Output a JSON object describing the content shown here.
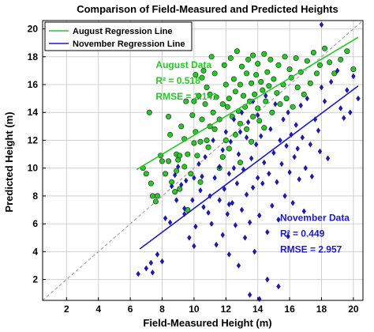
{
  "chart_data": {
    "type": "scatter",
    "title": "Comparison of Field-Measured and Predicted Heights",
    "xlabel": "Field-Measured Height (m)",
    "ylabel": "Predicted Height (m)",
    "xlim": [
      0.5,
      20.6
    ],
    "ylim": [
      0.5,
      20.6
    ],
    "xticks": [
      2,
      4,
      6,
      8,
      10,
      12,
      14,
      16,
      18,
      20
    ],
    "yticks": [
      2,
      4,
      6,
      8,
      10,
      12,
      14,
      16,
      18,
      20
    ],
    "grid": true,
    "legend_position": "top-left",
    "one_to_one_line": {
      "style": "dashed",
      "color": "#999999",
      "from": [
        0.5,
        0.5
      ],
      "to": [
        20.6,
        20.6
      ]
    },
    "regression_lines": [
      {
        "name": "August Regression Line",
        "color": "#22cc22",
        "from": [
          6.4,
          9.9
        ],
        "to": [
          20.3,
          19.4
        ]
      },
      {
        "name": "November Regression Line",
        "color": "#1a1acc",
        "from": [
          6.6,
          4.2
        ],
        "to": [
          20.3,
          15.9
        ]
      }
    ],
    "annotations": [
      {
        "lines": [
          "August Data",
          "R² = 0.518",
          "RMSE = 2.141"
        ],
        "color": "#22cc22",
        "x": 7.6,
        "y": 17.2
      },
      {
        "lines": [
          "November Data",
          "R² = 0.449",
          "RMSE = 2.957"
        ],
        "color": "#1a1acc",
        "x": 15.4,
        "y": 6.2
      }
    ],
    "series": [
      {
        "name": "August Data",
        "marker": "circle",
        "color": "#22cc22",
        "points": [
          [
            6.8,
            10.0
          ],
          [
            7.0,
            9.6
          ],
          [
            7.2,
            14.0
          ],
          [
            7.3,
            8.9
          ],
          [
            7.4,
            8.0
          ],
          [
            7.6,
            7.6
          ],
          [
            7.7,
            8.0
          ],
          [
            7.9,
            10.9
          ],
          [
            8.0,
            10.5
          ],
          [
            8.2,
            9.6
          ],
          [
            8.4,
            10.5
          ],
          [
            8.4,
            13.7
          ],
          [
            8.5,
            12.4
          ],
          [
            8.6,
            9.0
          ],
          [
            8.8,
            8.3
          ],
          [
            8.9,
            11.0
          ],
          [
            8.9,
            9.8
          ],
          [
            9.0,
            10.6
          ],
          [
            9.1,
            10.9
          ],
          [
            9.1,
            8.5
          ],
          [
            9.2,
            13.0
          ],
          [
            9.4,
            12.1
          ],
          [
            9.4,
            10.1
          ],
          [
            9.5,
            14.8
          ],
          [
            9.6,
            11.0
          ],
          [
            9.6,
            7.0
          ],
          [
            9.8,
            9.6
          ],
          [
            9.9,
            13.8
          ],
          [
            10.0,
            11.8
          ],
          [
            10.0,
            14.8
          ],
          [
            10.1,
            16.7
          ],
          [
            10.1,
            12.6
          ],
          [
            10.2,
            10.9
          ],
          [
            10.3,
            15.2
          ],
          [
            10.4,
            11.9
          ],
          [
            10.5,
            13.5
          ],
          [
            10.5,
            16.5
          ],
          [
            10.6,
            17.0
          ],
          [
            10.7,
            14.6
          ],
          [
            10.8,
            12.0
          ],
          [
            10.8,
            15.8
          ],
          [
            10.9,
            11.5
          ],
          [
            11.0,
            13.0
          ],
          [
            11.0,
            15.3
          ],
          [
            11.1,
            18.0
          ],
          [
            11.2,
            14.0
          ],
          [
            11.3,
            12.8
          ],
          [
            11.3,
            16.8
          ],
          [
            11.4,
            15.1
          ],
          [
            11.6,
            13.5
          ],
          [
            11.8,
            14.6
          ],
          [
            11.8,
            10.8
          ],
          [
            11.9,
            17.4
          ],
          [
            12.0,
            16.0
          ],
          [
            12.0,
            12.0
          ],
          [
            12.1,
            14.4
          ],
          [
            12.2,
            11.4
          ],
          [
            12.2,
            15.0
          ],
          [
            12.3,
            17.9
          ],
          [
            12.4,
            13.7
          ],
          [
            12.5,
            16.4
          ],
          [
            12.6,
            12.4
          ],
          [
            12.6,
            15.5
          ],
          [
            12.7,
            18.4
          ],
          [
            12.8,
            14.1
          ],
          [
            12.9,
            13.2
          ],
          [
            12.9,
            16.0
          ],
          [
            13.0,
            17.3
          ],
          [
            13.1,
            15.2
          ],
          [
            13.2,
            14.4
          ],
          [
            13.3,
            16.8
          ],
          [
            13.3,
            12.8
          ],
          [
            13.4,
            17.8
          ],
          [
            13.5,
            14.8
          ],
          [
            13.6,
            16.1
          ],
          [
            13.7,
            13.7
          ],
          [
            13.7,
            18.1
          ],
          [
            13.8,
            15.3
          ],
          [
            13.9,
            16.7
          ],
          [
            14.0,
            14.3
          ],
          [
            14.0,
            17.5
          ],
          [
            14.1,
            13.4
          ],
          [
            14.2,
            16.2
          ],
          [
            14.3,
            15.6
          ],
          [
            14.4,
            18.2
          ],
          [
            14.5,
            14.8
          ],
          [
            14.6,
            16.9
          ],
          [
            14.7,
            15.9
          ],
          [
            14.8,
            17.8
          ],
          [
            14.9,
            14.0
          ],
          [
            15.0,
            16.4
          ],
          [
            15.2,
            15.4
          ],
          [
            15.3,
            17.4
          ],
          [
            15.4,
            14.6
          ],
          [
            15.6,
            16.0
          ],
          [
            15.7,
            18.0
          ],
          [
            15.8,
            15.0
          ],
          [
            16.0,
            17.1
          ],
          [
            16.1,
            16.5
          ],
          [
            16.2,
            14.4
          ],
          [
            16.4,
            17.9
          ],
          [
            16.5,
            15.8
          ],
          [
            16.7,
            16.9
          ],
          [
            16.9,
            15.3
          ],
          [
            17.1,
            17.7
          ],
          [
            17.3,
            16.1
          ],
          [
            17.5,
            18.3
          ],
          [
            17.7,
            16.8
          ],
          [
            17.9,
            17.4
          ],
          [
            18.2,
            18.6
          ],
          [
            18.5,
            17.6
          ],
          [
            18.8,
            16.8
          ],
          [
            19.2,
            17.8
          ],
          [
            19.6,
            18.4
          ],
          [
            20.0,
            17.1
          ],
          [
            14.4,
            12.9
          ],
          [
            13.6,
            11.9
          ],
          [
            12.9,
            10.4
          ],
          [
            11.6,
            10.0
          ],
          [
            10.4,
            9.0
          ]
        ]
      },
      {
        "name": "November Data",
        "marker": "diamond",
        "color": "#1a1acc",
        "points": [
          [
            6.5,
            2.4
          ],
          [
            7.0,
            2.8
          ],
          [
            7.3,
            3.2
          ],
          [
            7.4,
            2.5
          ],
          [
            7.7,
            3.8
          ],
          [
            8.0,
            3.3
          ],
          [
            8.2,
            6.4
          ],
          [
            8.5,
            6.1
          ],
          [
            8.6,
            8.7
          ],
          [
            8.8,
            9.5
          ],
          [
            8.9,
            7.7
          ],
          [
            9.0,
            10.1
          ],
          [
            9.2,
            8.8
          ],
          [
            9.4,
            7.1
          ],
          [
            9.5,
            9.1
          ],
          [
            9.7,
            5.0
          ],
          [
            9.9,
            7.7
          ],
          [
            10.0,
            9.3
          ],
          [
            10.1,
            5.8
          ],
          [
            10.3,
            10.3
          ],
          [
            10.4,
            8.4
          ],
          [
            10.5,
            9.4
          ],
          [
            10.6,
            7.2
          ],
          [
            10.7,
            10.8
          ],
          [
            10.9,
            6.8
          ],
          [
            11.0,
            8.0
          ],
          [
            11.2,
            12.0
          ],
          [
            11.3,
            9.3
          ],
          [
            11.4,
            4.5
          ],
          [
            11.6,
            10.1
          ],
          [
            11.6,
            7.7
          ],
          [
            11.8,
            5.2
          ],
          [
            11.8,
            11.3
          ],
          [
            11.9,
            8.5
          ],
          [
            12.0,
            12.6
          ],
          [
            12.1,
            6.7
          ],
          [
            12.2,
            9.6
          ],
          [
            12.2,
            3.8
          ],
          [
            12.3,
            11.9
          ],
          [
            12.4,
            7.5
          ],
          [
            12.5,
            10.0
          ],
          [
            12.5,
            13.5
          ],
          [
            12.6,
            5.9
          ],
          [
            12.7,
            8.9
          ],
          [
            12.8,
            11.0
          ],
          [
            12.8,
            3.0
          ],
          [
            12.9,
            12.6
          ],
          [
            13.0,
            7.0
          ],
          [
            13.0,
            14.0
          ],
          [
            13.1,
            9.9
          ],
          [
            13.2,
            5.0
          ],
          [
            13.3,
            12.2
          ],
          [
            13.3,
            8.1
          ],
          [
            13.4,
            13.3
          ],
          [
            13.5,
            0.9
          ],
          [
            13.5,
            6.1
          ],
          [
            13.6,
            10.7
          ],
          [
            13.7,
            14.8
          ],
          [
            13.7,
            8.6
          ],
          [
            13.8,
            4.0
          ],
          [
            13.9,
            11.7
          ],
          [
            14.0,
            9.3
          ],
          [
            14.0,
            13.8
          ],
          [
            14.1,
            0.6
          ],
          [
            14.1,
            6.6
          ],
          [
            14.2,
            12.3
          ],
          [
            14.3,
            8.9
          ],
          [
            14.4,
            10.4
          ],
          [
            14.5,
            15.2
          ],
          [
            14.6,
            5.4
          ],
          [
            14.7,
            9.6
          ],
          [
            14.8,
            12.8
          ],
          [
            14.9,
            7.3
          ],
          [
            15.0,
            11.1
          ],
          [
            15.1,
            14.6
          ],
          [
            15.2,
            9.0
          ],
          [
            15.3,
            6.3
          ],
          [
            15.4,
            12.0
          ],
          [
            15.5,
            10.3
          ],
          [
            15.6,
            13.5
          ],
          [
            15.7,
            8.0
          ],
          [
            15.8,
            11.6
          ],
          [
            15.9,
            14.0
          ],
          [
            16.0,
            9.7
          ],
          [
            16.1,
            12.4
          ],
          [
            16.2,
            7.5
          ],
          [
            16.3,
            10.8
          ],
          [
            16.4,
            13.1
          ],
          [
            16.5,
            11.4
          ],
          [
            16.6,
            9.2
          ],
          [
            16.7,
            14.5
          ],
          [
            16.8,
            12.2
          ],
          [
            17.0,
            10.0
          ],
          [
            17.1,
            15.0
          ],
          [
            17.3,
            11.7
          ],
          [
            17.4,
            9.4
          ],
          [
            17.6,
            13.5
          ],
          [
            17.8,
            12.7
          ],
          [
            18.0,
            20.3
          ],
          [
            18.0,
            15.8
          ],
          [
            18.2,
            14.8
          ],
          [
            18.4,
            10.7
          ],
          [
            18.6,
            16.2
          ],
          [
            19.0,
            17.0
          ],
          [
            19.2,
            14.3
          ],
          [
            19.4,
            13.6
          ],
          [
            19.6,
            15.6
          ],
          [
            19.8,
            14.0
          ],
          [
            20.0,
            16.6
          ],
          [
            20.3,
            15.0
          ],
          [
            15.3,
            1.5
          ],
          [
            14.6,
            2.0
          ],
          [
            12.2,
            7.4
          ],
          [
            11.1,
            6.0
          ],
          [
            10.0,
            4.4
          ],
          [
            9.4,
            6.7
          ],
          [
            17.9,
            11.2
          ],
          [
            16.9,
            6.9
          ],
          [
            15.9,
            5.1
          ]
        ]
      }
    ]
  }
}
